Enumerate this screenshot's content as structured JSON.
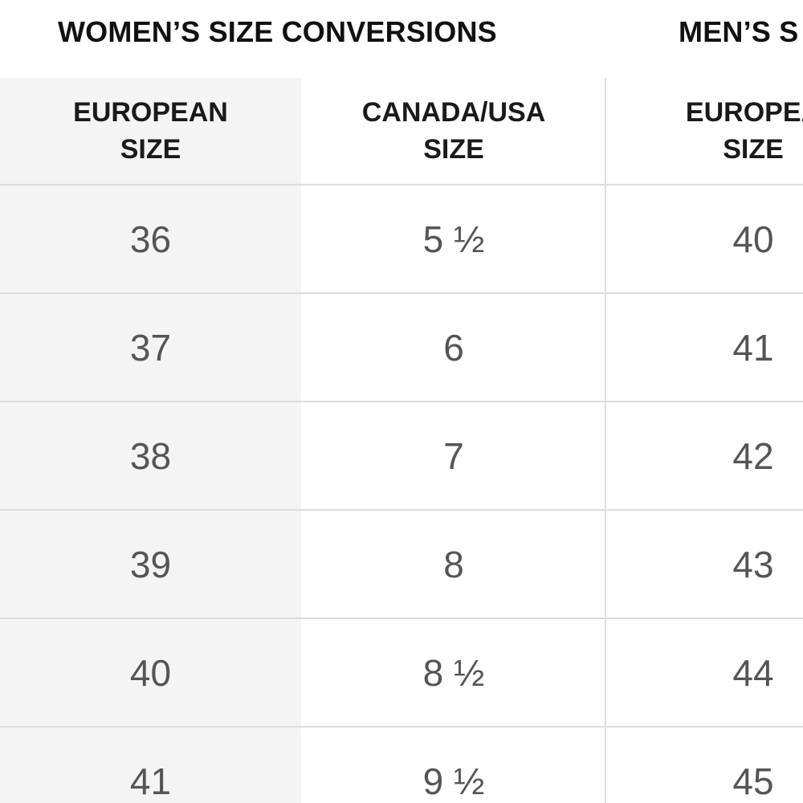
{
  "women": {
    "title": "WOMEN’S SIZE CONVERSIONS",
    "headers": [
      "EUROPEAN\nSIZE",
      "CANADA/USA\nSIZE"
    ],
    "rows": [
      [
        "36",
        "5 ½"
      ],
      [
        "37",
        "6"
      ],
      [
        "38",
        "7"
      ],
      [
        "39",
        "8"
      ],
      [
        "40",
        "8 ½"
      ],
      [
        "41",
        "9 ½"
      ]
    ]
  },
  "men": {
    "title": "MEN’S S",
    "headers": [
      "EUROPEA\nSIZE"
    ],
    "rows": [
      [
        "40"
      ],
      [
        "41"
      ],
      [
        "42"
      ],
      [
        "43"
      ],
      [
        "44"
      ],
      [
        "45"
      ]
    ]
  },
  "colors": {
    "shaded_column": "#f4f4f4",
    "grid_line": "#dcdcdc",
    "header_text": "#1a1a1a",
    "value_text": "#555555"
  }
}
